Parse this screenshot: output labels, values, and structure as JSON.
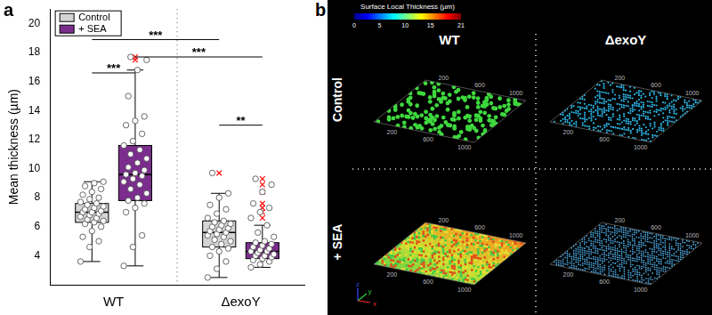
{
  "chart_data": {
    "type": "box",
    "panel_label": "a",
    "y_label": "Mean thickness (µm)",
    "categories": [
      "WT",
      "ΔexoY"
    ],
    "series": [
      {
        "name": "Control",
        "color": "#d4d4d4",
        "boxes": [
          {
            "q1": 6.3,
            "median": 7.0,
            "q3": 7.6,
            "whisker_low": 3.6,
            "whisker_high": 9.1,
            "outliers": [],
            "points": [
              3.6,
              4.6,
              5.0,
              5.3,
              5.7,
              6.0,
              6.2,
              6.3,
              6.4,
              6.5,
              6.6,
              6.7,
              6.8,
              6.9,
              7.0,
              7.0,
              7.1,
              7.2,
              7.3,
              7.4,
              7.5,
              7.6,
              7.7,
              7.9,
              8.0,
              8.2,
              8.4,
              8.6,
              8.8,
              9.0,
              9.1
            ]
          },
          {
            "q1": 4.6,
            "median": 5.6,
            "q3": 6.4,
            "whisker_low": 2.5,
            "whisker_high": 8.3,
            "outliers": [
              9.7
            ],
            "points": [
              2.5,
              3.1,
              3.6,
              4.0,
              4.3,
              4.5,
              4.6,
              4.8,
              5.0,
              5.1,
              5.3,
              5.4,
              5.5,
              5.6,
              5.7,
              5.8,
              5.9,
              6.0,
              6.1,
              6.2,
              6.3,
              6.4,
              6.6,
              6.9,
              7.2,
              7.5,
              8.0,
              8.3,
              9.7
            ]
          }
        ]
      },
      {
        "name": "+ SEA",
        "color": "#7b2d8e",
        "boxes": [
          {
            "q1": 7.8,
            "median": 9.6,
            "q3": 11.6,
            "whisker_low": 3.3,
            "whisker_high": 16.8,
            "outliers": [
              17.5,
              17.7
            ],
            "points": [
              3.3,
              4.6,
              5.4,
              7.0,
              7.3,
              7.6,
              7.8,
              8.0,
              8.3,
              8.6,
              8.9,
              9.1,
              9.3,
              9.5,
              9.6,
              9.7,
              9.9,
              10.1,
              10.4,
              10.7,
              11.0,
              11.3,
              11.6,
              11.9,
              12.4,
              13.0,
              13.3,
              13.6,
              15.0,
              16.8,
              17.5,
              17.7
            ]
          },
          {
            "q1": 3.8,
            "median": 4.3,
            "q3": 4.9,
            "whisker_low": 3.2,
            "whisker_high": 6.1,
            "outliers": [
              6.6,
              7.0,
              7.3,
              7.6,
              8.4,
              8.9,
              9.3
            ],
            "points": [
              3.2,
              3.4,
              3.6,
              3.7,
              3.8,
              3.9,
              4.0,
              4.0,
              4.1,
              4.2,
              4.3,
              4.3,
              4.4,
              4.5,
              4.6,
              4.7,
              4.8,
              4.9,
              5.0,
              5.3,
              5.6,
              6.1,
              6.6,
              7.0,
              7.3,
              7.6,
              8.4,
              8.9,
              9.3
            ]
          }
        ]
      }
    ],
    "significance": [
      {
        "from": {
          "category": "WT",
          "series": "Control"
        },
        "to": {
          "category": "WT",
          "series": "+ SEA"
        },
        "y": 16.6,
        "label": "***"
      },
      {
        "from": {
          "category": "WT",
          "series": "+ SEA"
        },
        "to": {
          "category": "ΔexoY",
          "series": "+ SEA"
        },
        "y": 17.7,
        "label": "***"
      },
      {
        "from": {
          "category": "WT",
          "series": "Control"
        },
        "to": {
          "category": "ΔexoY",
          "series": "Control"
        },
        "y": 18.9,
        "label": "***"
      },
      {
        "from": {
          "category": "ΔexoY",
          "series": "Control"
        },
        "to": {
          "category": "ΔexoY",
          "series": "+ SEA"
        },
        "y": 13.0,
        "label": "**"
      }
    ],
    "ylim": [
      2,
      21
    ],
    "yticks": [
      4,
      6,
      8,
      10,
      12,
      14,
      16,
      18,
      20
    ],
    "grid": false,
    "legend": "top-left"
  },
  "image_panel": {
    "panel_label": "b",
    "colorbar": {
      "title": "Surface Local Thickness (µm)",
      "range": [
        0,
        21
      ],
      "ticks": [
        0,
        5,
        10,
        15,
        21
      ]
    },
    "columns": [
      "WT",
      "ΔexoY"
    ],
    "rows": [
      "Control",
      "+ SEA"
    ],
    "axis_ticks": [
      200,
      600,
      1000
    ],
    "axes_triad": [
      "z",
      "y",
      "x"
    ]
  }
}
